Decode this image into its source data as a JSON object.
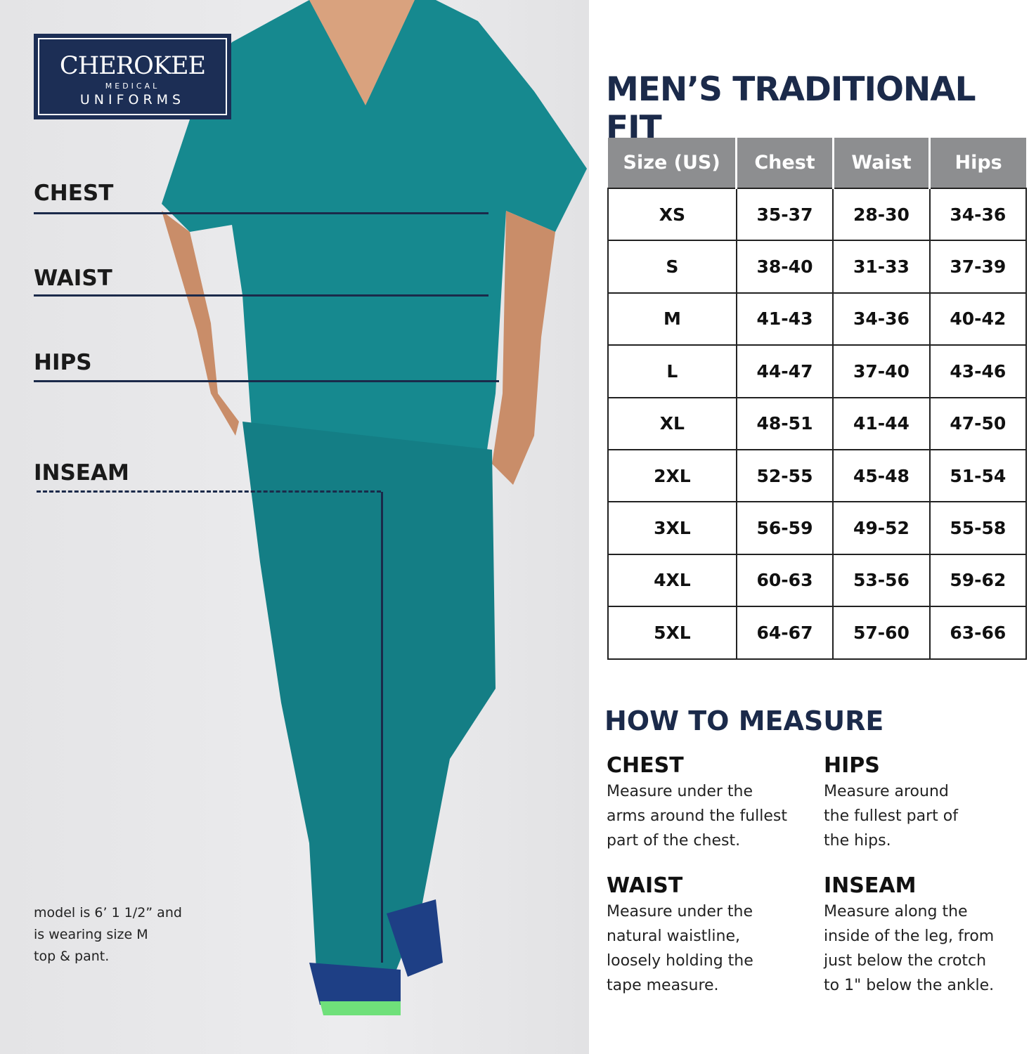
{
  "logo": {
    "brand": "CHEROKEE",
    "sub": "MEDICAL",
    "line2": "UNIFORMS"
  },
  "measure_labels": [
    "CHEST",
    "WAIST",
    "HIPS",
    "INSEAM"
  ],
  "model_note": [
    "model is 6’ 1 1/2” and",
    "is wearing size M",
    "top & pant."
  ],
  "title": "MEN’S TRADITIONAL FIT",
  "table": {
    "headers": [
      "Size (US)",
      "Chest",
      "Waist",
      "Hips"
    ],
    "rows": [
      [
        "XS",
        "35-37",
        "28-30",
        "34-36"
      ],
      [
        "S",
        "38-40",
        "31-33",
        "37-39"
      ],
      [
        "M",
        "41-43",
        "34-36",
        "40-42"
      ],
      [
        "L",
        "44-47",
        "37-40",
        "43-46"
      ],
      [
        "XL",
        "48-51",
        "41-44",
        "47-50"
      ],
      [
        "2XL",
        "52-55",
        "45-48",
        "51-54"
      ],
      [
        "3XL",
        "56-59",
        "49-52",
        "55-58"
      ],
      [
        "4XL",
        "60-63",
        "53-56",
        "59-62"
      ],
      [
        "5XL",
        "64-67",
        "57-60",
        "63-66"
      ]
    ]
  },
  "how_to": {
    "title": "HOW TO MEASURE",
    "items": [
      {
        "name": "CHEST",
        "lines": [
          "Measure under the",
          "arms around the fullest",
          "part of the chest."
        ]
      },
      {
        "name": "HIPS",
        "lines": [
          "Measure around",
          "the fullest part of",
          "the hips."
        ]
      },
      {
        "name": "WAIST",
        "lines": [
          "Measure under the",
          "natural waistline,",
          "loosely holding the",
          "tape measure."
        ]
      },
      {
        "name": "INSEAM",
        "lines": [
          "Measure along the",
          "inside of the leg, from",
          "just below the crotch",
          "to 1\" below the ankle."
        ]
      }
    ]
  },
  "colors": {
    "navy": "#1b2a4a",
    "teal": "#14848a",
    "header_gray": "#8d8e90"
  }
}
